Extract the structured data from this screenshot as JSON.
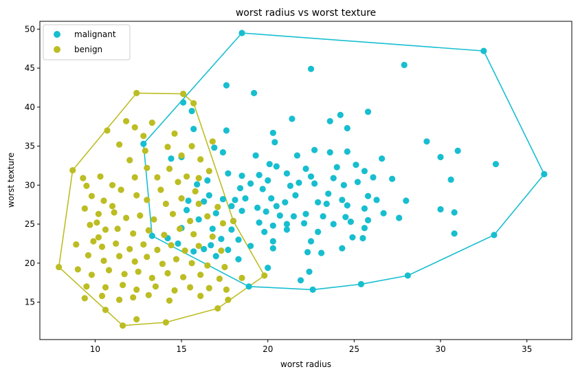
{
  "chart_data": {
    "type": "scatter",
    "title": "worst radius vs worst texture",
    "xlabel": "worst radius",
    "ylabel": "worst texture",
    "xlim": [
      6.8,
      37.6
    ],
    "ylim": [
      10.2,
      51.0
    ],
    "xticks": [
      10,
      15,
      20,
      25,
      30,
      35
    ],
    "yticks": [
      15,
      20,
      25,
      30,
      35,
      40,
      45,
      50
    ],
    "grid": false,
    "legend": "top-left",
    "series": [
      {
        "name": "malignant",
        "color": "#17becf",
        "hull": [
          [
            18.5,
            49.5
          ],
          [
            32.5,
            47.2
          ],
          [
            36.0,
            31.4
          ],
          [
            33.1,
            23.6
          ],
          [
            28.1,
            18.4
          ],
          [
            25.4,
            17.3
          ],
          [
            22.6,
            16.6
          ],
          [
            18.9,
            17.0
          ],
          [
            13.3,
            23.5
          ],
          [
            12.8,
            35.3
          ],
          [
            18.5,
            49.5
          ]
        ],
        "points": [
          [
            18.5,
            49.5
          ],
          [
            32.5,
            47.2
          ],
          [
            36.0,
            31.4
          ],
          [
            33.1,
            23.6
          ],
          [
            28.1,
            18.4
          ],
          [
            25.4,
            17.3
          ],
          [
            22.6,
            16.6
          ],
          [
            18.9,
            17.0
          ],
          [
            13.3,
            23.5
          ],
          [
            12.8,
            35.3
          ],
          [
            22.5,
            44.9
          ],
          [
            27.9,
            45.4
          ],
          [
            17.6,
            42.8
          ],
          [
            19.2,
            41.8
          ],
          [
            15.1,
            40.6
          ],
          [
            15.6,
            39.5
          ],
          [
            25.8,
            39.4
          ],
          [
            21.4,
            38.5
          ],
          [
            24.2,
            39.0
          ],
          [
            17.6,
            37.0
          ],
          [
            15.7,
            37.2
          ],
          [
            20.3,
            36.7
          ],
          [
            24.6,
            37.3
          ],
          [
            23.6,
            38.2
          ],
          [
            29.2,
            35.6
          ],
          [
            16.9,
            34.8
          ],
          [
            20.4,
            35.5
          ],
          [
            31.0,
            34.4
          ],
          [
            22.7,
            34.5
          ],
          [
            23.6,
            34.2
          ],
          [
            24.6,
            34.3
          ],
          [
            17.4,
            34.2
          ],
          [
            15.0,
            33.6
          ],
          [
            14.4,
            33.4
          ],
          [
            19.3,
            33.8
          ],
          [
            21.7,
            33.8
          ],
          [
            26.6,
            33.4
          ],
          [
            30.0,
            33.6
          ],
          [
            33.2,
            32.7
          ],
          [
            25.1,
            32.6
          ],
          [
            20.1,
            32.7
          ],
          [
            20.5,
            32.4
          ],
          [
            22.2,
            32.1
          ],
          [
            24.0,
            32.3
          ],
          [
            25.6,
            31.8
          ],
          [
            27.2,
            30.8
          ],
          [
            30.6,
            30.7
          ],
          [
            17.7,
            31.5
          ],
          [
            18.5,
            31.2
          ],
          [
            19.5,
            31.3
          ],
          [
            21.1,
            31.5
          ],
          [
            22.5,
            31.1
          ],
          [
            23.8,
            30.9
          ],
          [
            20.0,
            30.6
          ],
          [
            21.8,
            30.3
          ],
          [
            19.0,
            30.2
          ],
          [
            16.5,
            30.6
          ],
          [
            15.9,
            30.1
          ],
          [
            18.4,
            29.6
          ],
          [
            19.7,
            29.5
          ],
          [
            21.3,
            29.9
          ],
          [
            22.7,
            30.2
          ],
          [
            24.4,
            30.0
          ],
          [
            25.2,
            30.4
          ],
          [
            26.1,
            31.0
          ],
          [
            17.4,
            28.2
          ],
          [
            18.1,
            28.1
          ],
          [
            18.7,
            28.3
          ],
          [
            20.2,
            28.3
          ],
          [
            21.6,
            28.7
          ],
          [
            23.5,
            28.9
          ],
          [
            24.3,
            28.1
          ],
          [
            25.8,
            28.6
          ],
          [
            26.3,
            28.1
          ],
          [
            28.0,
            28.0
          ],
          [
            16.3,
            27.9
          ],
          [
            17.9,
            27.3
          ],
          [
            19.4,
            27.1
          ],
          [
            20.5,
            27.3
          ],
          [
            21.0,
            27.8
          ],
          [
            22.9,
            27.8
          ],
          [
            23.4,
            27.6
          ],
          [
            24.6,
            27.4
          ],
          [
            25.6,
            27.0
          ],
          [
            30.0,
            26.9
          ],
          [
            30.8,
            26.5
          ],
          [
            17.0,
            26.4
          ],
          [
            18.5,
            26.7
          ],
          [
            19.9,
            26.6
          ],
          [
            20.7,
            26.1
          ],
          [
            21.5,
            26.0
          ],
          [
            22.2,
            26.3
          ],
          [
            23.2,
            26.0
          ],
          [
            24.5,
            25.9
          ],
          [
            25.8,
            25.5
          ],
          [
            26.7,
            26.4
          ],
          [
            27.6,
            25.8
          ],
          [
            18.0,
            25.4
          ],
          [
            19.5,
            25.2
          ],
          [
            20.3,
            24.8
          ],
          [
            21.1,
            25.0
          ],
          [
            22.1,
            25.1
          ],
          [
            23.8,
            25.0
          ],
          [
            24.8,
            25.3
          ],
          [
            16.8,
            24.4
          ],
          [
            17.9,
            24.3
          ],
          [
            19.8,
            24.0
          ],
          [
            21.1,
            24.3
          ],
          [
            22.9,
            24.0
          ],
          [
            25.6,
            24.5
          ],
          [
            30.8,
            23.8
          ],
          [
            17.3,
            23.1
          ],
          [
            18.3,
            23.0
          ],
          [
            20.3,
            22.8
          ],
          [
            22.5,
            22.8
          ],
          [
            24.9,
            23.3
          ],
          [
            25.5,
            23.2
          ],
          [
            16.7,
            22.3
          ],
          [
            17.7,
            21.7
          ],
          [
            19.0,
            22.2
          ],
          [
            20.3,
            21.9
          ],
          [
            22.3,
            21.4
          ],
          [
            23.1,
            21.3
          ],
          [
            24.3,
            21.9
          ],
          [
            15.7,
            21.5
          ],
          [
            17.0,
            20.9
          ],
          [
            18.3,
            20.5
          ],
          [
            20.0,
            19.4
          ],
          [
            22.4,
            18.9
          ],
          [
            21.9,
            17.8
          ],
          [
            15.3,
            26.8
          ],
          [
            16.0,
            25.6
          ],
          [
            15.0,
            24.5
          ],
          [
            14.8,
            22.5
          ],
          [
            16.3,
            21.8
          ],
          [
            14.2,
            23.2
          ],
          [
            16.6,
            28.7
          ],
          [
            15.4,
            28.0
          ]
        ]
      },
      {
        "name": "benign",
        "color": "#bcbd22",
        "hull": [
          [
            8.7,
            31.9
          ],
          [
            12.4,
            41.8
          ],
          [
            15.1,
            41.7
          ],
          [
            15.7,
            40.5
          ],
          [
            18.0,
            25.4
          ],
          [
            19.8,
            18.4
          ],
          [
            17.1,
            14.2
          ],
          [
            14.1,
            12.4
          ],
          [
            11.6,
            12.0
          ],
          [
            7.9,
            19.5
          ],
          [
            8.7,
            31.9
          ]
        ],
        "points": [
          [
            8.7,
            31.9
          ],
          [
            12.4,
            41.8
          ],
          [
            15.1,
            41.7
          ],
          [
            15.7,
            40.5
          ],
          [
            18.0,
            25.4
          ],
          [
            19.8,
            18.4
          ],
          [
            17.1,
            14.2
          ],
          [
            14.1,
            12.4
          ],
          [
            11.6,
            12.0
          ],
          [
            7.9,
            19.5
          ],
          [
            12.3,
            37.4
          ],
          [
            11.8,
            38.2
          ],
          [
            13.3,
            38.0
          ],
          [
            12.8,
            36.3
          ],
          [
            10.7,
            37.0
          ],
          [
            14.6,
            36.6
          ],
          [
            15.6,
            35.0
          ],
          [
            14.2,
            34.9
          ],
          [
            16.8,
            35.6
          ],
          [
            16.1,
            33.3
          ],
          [
            11.4,
            35.2
          ],
          [
            12.9,
            34.4
          ],
          [
            15.0,
            33.8
          ],
          [
            9.3,
            30.9
          ],
          [
            9.5,
            29.9
          ],
          [
            10.3,
            31.1
          ],
          [
            11.0,
            30.0
          ],
          [
            12.3,
            31.0
          ],
          [
            13.0,
            32.2
          ],
          [
            14.3,
            32.1
          ],
          [
            15.3,
            31.1
          ],
          [
            16.0,
            30.9
          ],
          [
            16.6,
            31.8
          ],
          [
            9.8,
            28.6
          ],
          [
            10.5,
            28.0
          ],
          [
            11.5,
            29.4
          ],
          [
            12.4,
            28.7
          ],
          [
            13.0,
            28.1
          ],
          [
            14.1,
            27.6
          ],
          [
            15.0,
            28.3
          ],
          [
            16.0,
            27.6
          ],
          [
            17.1,
            27.2
          ],
          [
            9.4,
            27.0
          ],
          [
            10.2,
            26.3
          ],
          [
            11.1,
            26.5
          ],
          [
            11.8,
            25.8
          ],
          [
            12.6,
            26.1
          ],
          [
            13.4,
            25.6
          ],
          [
            14.5,
            26.3
          ],
          [
            15.5,
            25.4
          ],
          [
            16.5,
            26.0
          ],
          [
            17.4,
            25.1
          ],
          [
            9.7,
            24.9
          ],
          [
            10.6,
            24.3
          ],
          [
            11.3,
            24.4
          ],
          [
            12.2,
            23.8
          ],
          [
            13.1,
            24.2
          ],
          [
            14.0,
            23.6
          ],
          [
            14.9,
            24.4
          ],
          [
            15.7,
            23.7
          ],
          [
            16.8,
            23.4
          ],
          [
            8.9,
            22.4
          ],
          [
            9.9,
            22.8
          ],
          [
            10.4,
            22.1
          ],
          [
            11.2,
            22.5
          ],
          [
            12.0,
            21.8
          ],
          [
            12.8,
            22.4
          ],
          [
            13.6,
            21.7
          ],
          [
            14.4,
            22.3
          ],
          [
            15.2,
            21.6
          ],
          [
            16.0,
            22.2
          ],
          [
            17.3,
            21.6
          ],
          [
            9.6,
            21.0
          ],
          [
            10.5,
            20.3
          ],
          [
            11.4,
            20.9
          ],
          [
            12.3,
            20.2
          ],
          [
            13.0,
            20.8
          ],
          [
            13.9,
            19.9
          ],
          [
            14.7,
            20.5
          ],
          [
            15.6,
            20.0
          ],
          [
            16.5,
            19.7
          ],
          [
            17.5,
            19.5
          ],
          [
            9.0,
            19.2
          ],
          [
            9.8,
            18.5
          ],
          [
            10.8,
            19.1
          ],
          [
            11.7,
            18.6
          ],
          [
            12.5,
            18.9
          ],
          [
            13.3,
            18.1
          ],
          [
            14.2,
            18.7
          ],
          [
            15.1,
            18.2
          ],
          [
            16.1,
            18.5
          ],
          [
            17.2,
            18.0
          ],
          [
            18.5,
            18.1
          ],
          [
            9.5,
            17.0
          ],
          [
            10.6,
            16.9
          ],
          [
            11.6,
            17.2
          ],
          [
            12.4,
            16.6
          ],
          [
            13.5,
            17.0
          ],
          [
            14.6,
            16.5
          ],
          [
            15.5,
            16.9
          ],
          [
            16.6,
            16.8
          ],
          [
            17.6,
            16.6
          ],
          [
            9.4,
            15.5
          ],
          [
            10.4,
            15.8
          ],
          [
            11.4,
            15.3
          ],
          [
            12.2,
            15.6
          ],
          [
            13.1,
            15.9
          ],
          [
            14.3,
            15.2
          ],
          [
            16.1,
            15.8
          ],
          [
            17.7,
            15.3
          ],
          [
            10.6,
            14.0
          ],
          [
            12.4,
            12.8
          ],
          [
            10.2,
            23.3
          ],
          [
            11.0,
            27.3
          ],
          [
            13.8,
            29.4
          ],
          [
            14.8,
            30.4
          ],
          [
            12.0,
            33.2
          ],
          [
            13.6,
            31.0
          ],
          [
            10.1,
            25.2
          ],
          [
            15.8,
            29.2
          ]
        ]
      }
    ]
  }
}
